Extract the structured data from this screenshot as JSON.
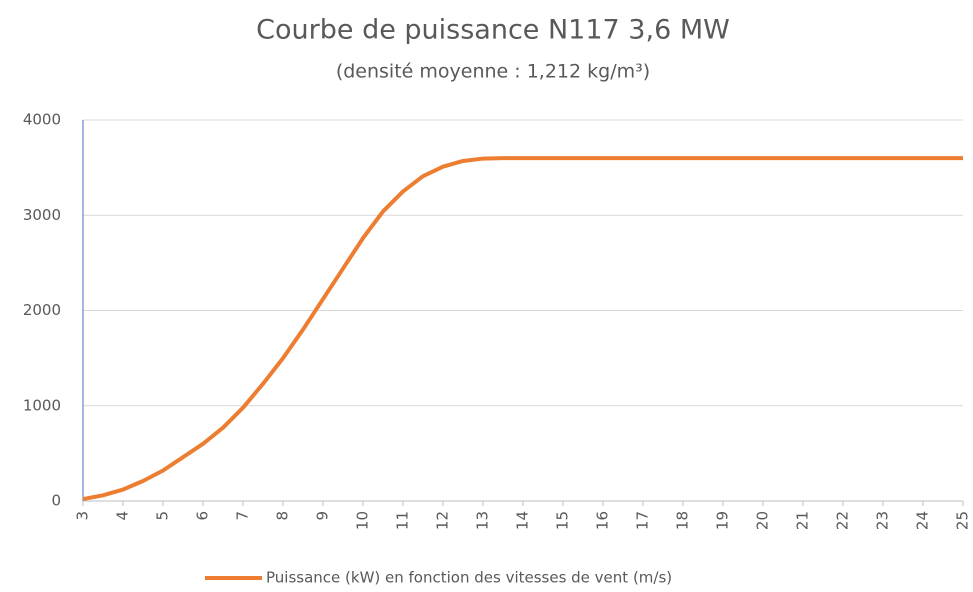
{
  "chart_data": {
    "type": "line",
    "title": "Courbe de puissance N117 3,6 MW",
    "subtitle": "(densité moyenne : 1,212 kg/m³)",
    "x": [
      3,
      3.5,
      4,
      4.5,
      5,
      5.5,
      6,
      6.5,
      7,
      7.5,
      8,
      8.5,
      9,
      9.5,
      10,
      10.5,
      11,
      11.5,
      12,
      12.5,
      13,
      13.5,
      14,
      14.5,
      15,
      15.5,
      16,
      16.5,
      17,
      17.5,
      18,
      18.5,
      19,
      19.5,
      20,
      20.5,
      21,
      21.5,
      22,
      22.5,
      23,
      23.5,
      24,
      24.5,
      25
    ],
    "series": [
      {
        "name": "Puissance (kW) en fonction des vitesses de vent (m/s)",
        "color": "#ed7d31",
        "values": [
          20,
          60,
          120,
          210,
          320,
          460,
          600,
          770,
          980,
          1230,
          1500,
          1800,
          2120,
          2440,
          2760,
          3040,
          3250,
          3410,
          3510,
          3570,
          3595,
          3600,
          3600,
          3600,
          3600,
          3600,
          3600,
          3600,
          3600,
          3600,
          3600,
          3600,
          3600,
          3600,
          3600,
          3600,
          3600,
          3600,
          3600,
          3600,
          3600,
          3600,
          3600,
          3600,
          3600
        ]
      }
    ],
    "xlim": [
      3,
      25
    ],
    "xticks": [
      3,
      4,
      5,
      6,
      7,
      8,
      9,
      10,
      11,
      12,
      13,
      14,
      15,
      16,
      17,
      18,
      19,
      20,
      21,
      22,
      23,
      24,
      25
    ],
    "ylim": [
      0,
      4000
    ],
    "yticks": [
      0,
      1000,
      2000,
      3000,
      4000
    ],
    "grid": true,
    "legend": "bottom"
  }
}
